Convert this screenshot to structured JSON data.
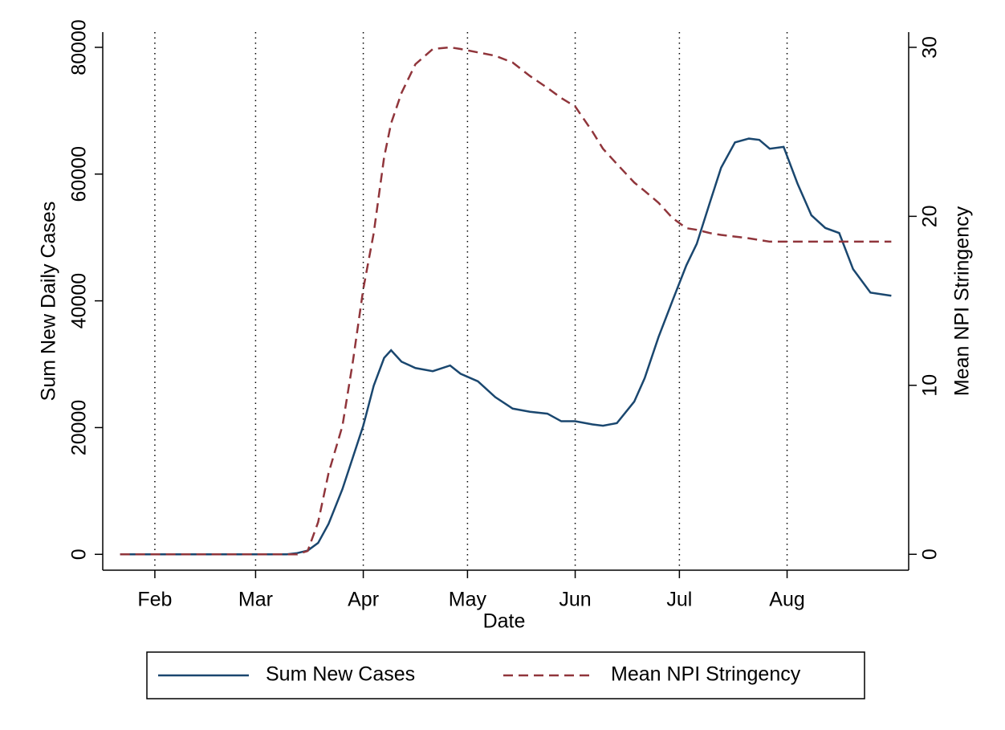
{
  "chart_data": {
    "type": "line",
    "x_label": "Date",
    "y_label": "Sum New Daily Cases",
    "y2_label": "Mean NPI Stringency",
    "x": [
      22,
      30,
      40,
      50,
      60,
      70,
      73,
      76,
      79,
      82,
      86,
      89,
      92,
      95,
      98,
      100,
      103,
      107,
      112,
      117,
      120,
      125,
      130,
      135,
      140,
      145,
      149,
      153,
      158,
      161,
      165,
      170,
      173,
      177,
      181,
      185,
      188,
      192,
      195,
      199,
      203,
      206,
      209,
      213,
      217,
      221,
      225,
      229,
      233,
      238,
      244
    ],
    "series": [
      {
        "name": "Sum New Cases",
        "color": "#1a476f",
        "dashed": false,
        "values": [
          0,
          0,
          0,
          0,
          0,
          0,
          200,
          600,
          1800,
          4800,
          10300,
          15300,
          20300,
          26600,
          31000,
          32200,
          30400,
          29400,
          28900,
          29800,
          28500,
          27300,
          24800,
          23000,
          22500,
          22200,
          21000,
          21000,
          20500,
          20300,
          20700,
          24100,
          27800,
          34300,
          40000,
          45600,
          49000,
          55900,
          61000,
          65000,
          65600,
          65400,
          64000,
          64300,
          58500,
          53500,
          51500,
          50700,
          45000,
          41300,
          40800
        ]
      },
      {
        "name": "Mean NPI Stringency",
        "color": "#90353b",
        "dashed": true,
        "axis": "y2",
        "values": [
          0,
          0,
          0,
          0,
          0,
          0,
          0,
          0.2,
          1.9,
          4.8,
          7.6,
          11.4,
          15.7,
          19,
          23.5,
          25.5,
          27.3,
          29,
          29.9,
          30,
          29.9,
          29.7,
          29.5,
          29.1,
          28.3,
          27.6,
          27,
          26.5,
          25,
          24,
          23.1,
          22,
          21.5,
          20.8,
          19.9,
          19.3,
          19.2,
          19,
          18.9,
          18.8,
          18.7,
          18.6,
          18.5,
          18.5,
          18.5,
          18.5,
          18.5,
          18.5,
          18.5,
          18.5,
          18.5
        ]
      }
    ],
    "xlim": [
      17,
      249
    ],
    "xticks": [
      {
        "value": 32,
        "label": "Feb"
      },
      {
        "value": 61,
        "label": "Mar"
      },
      {
        "value": 92,
        "label": "Apr"
      },
      {
        "value": 122,
        "label": "May"
      },
      {
        "value": 153,
        "label": "Jun"
      },
      {
        "value": 183,
        "label": "Jul"
      },
      {
        "value": 214,
        "label": "Aug"
      }
    ],
    "ylim": [
      -2500,
      82400
    ],
    "yticks": [
      0,
      20000,
      40000,
      60000,
      80000
    ],
    "y2lim": [
      -0.94,
      30.9
    ],
    "y2ticks": [
      0,
      10,
      20,
      30
    ],
    "grid": "x-dotted",
    "legend": "bottom"
  }
}
